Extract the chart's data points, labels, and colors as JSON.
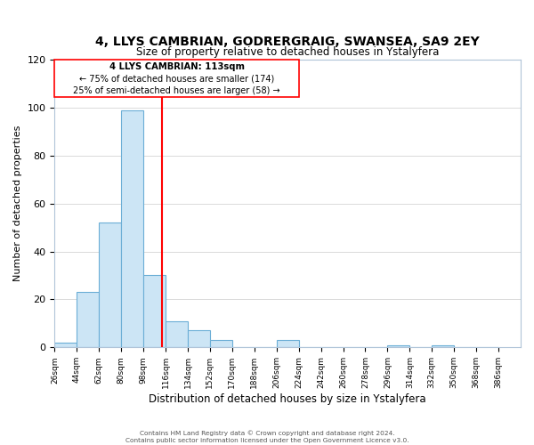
{
  "title": "4, LLYS CAMBRIAN, GODRERGRAIG, SWANSEA, SA9 2EY",
  "subtitle": "Size of property relative to detached houses in Ystalyfera",
  "xlabel": "Distribution of detached houses by size in Ystalyfera",
  "ylabel": "Number of detached properties",
  "bin_left_edges": [
    26,
    44,
    62,
    80,
    98,
    116,
    134,
    152,
    170,
    188,
    206,
    224,
    242,
    260,
    278,
    296,
    314,
    332,
    350,
    368,
    386
  ],
  "bin_labels": [
    "26sqm",
    "44sqm",
    "62sqm",
    "80sqm",
    "98sqm",
    "116sqm",
    "134sqm",
    "152sqm",
    "170sqm",
    "188sqm",
    "206sqm",
    "224sqm",
    "242sqm",
    "260sqm",
    "278sqm",
    "296sqm",
    "314sqm",
    "332sqm",
    "350sqm",
    "368sqm",
    "386sqm"
  ],
  "counts": [
    2,
    23,
    52,
    99,
    30,
    11,
    7,
    3,
    0,
    0,
    3,
    0,
    0,
    0,
    0,
    1,
    0,
    1,
    0,
    0
  ],
  "bar_color": "#cce5f5",
  "bar_edge_color": "#6baed6",
  "vline_x": 113,
  "vline_color": "red",
  "ylim": [
    0,
    120
  ],
  "yticks": [
    0,
    20,
    40,
    60,
    80,
    100,
    120
  ],
  "grid_color": "#cccccc",
  "annotation_line1": "4 LLYS CAMBRIAN: 113sqm",
  "annotation_line2": "← 75% of detached houses are smaller (174)",
  "annotation_line3": "25% of semi-detached houses are larger (58) →",
  "footer1": "Contains HM Land Registry data © Crown copyright and database right 2024.",
  "footer2": "Contains public sector information licensed under the Open Government Licence v3.0."
}
